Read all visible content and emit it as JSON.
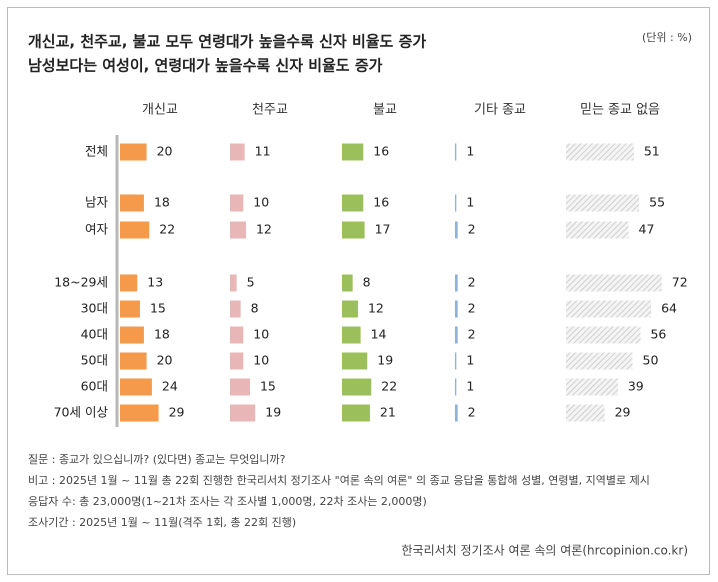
{
  "chart_data": {
    "type": "bar",
    "title": "개신교, 천주교, 불교 모두 연령대가 높을수록 신자 비율도 증가",
    "subtitle": "남성보다는 여성이, 연령대가 높을수록 신자 비율도 증가",
    "unit_note": "(단위 : %)",
    "categories": [
      "전체",
      "남자",
      "여자",
      "18~29세",
      "30대",
      "40대",
      "50대",
      "60대",
      "70세 이상"
    ],
    "series": [
      {
        "name": "개신교",
        "color": "#f59a4a",
        "values": [
          20,
          18,
          22,
          13,
          15,
          18,
          20,
          24,
          29
        ]
      },
      {
        "name": "천주교",
        "color": "#e8b6b6",
        "values": [
          11,
          10,
          12,
          5,
          8,
          10,
          10,
          15,
          19
        ]
      },
      {
        "name": "불교",
        "color": "#9bbf5a",
        "values": [
          16,
          16,
          17,
          8,
          12,
          14,
          19,
          22,
          21
        ]
      },
      {
        "name": "기타 종교",
        "color": "#8fb0d8",
        "values": [
          1,
          1,
          2,
          2,
          2,
          2,
          1,
          1,
          2
        ]
      },
      {
        "name": "믿는 종교 없음",
        "color": "#d0d0d0",
        "values": [
          51,
          55,
          47,
          72,
          64,
          56,
          50,
          39,
          29
        ]
      }
    ],
    "notes": [
      "질문 : 종교가 있으십니까? (있다면) 종교는 무엇입니까?",
      "비고 : 2025년 1월 ~ 11월 총 22회 진행한 한국리서치 정기조사 \"여론 속의 여론\" 의 종교 응답을 통합해 성별, 연령별, 지역별로 제시",
      "응답자 수: 총 23,000명(1~21차 조사는 각 조사별 1,000명, 22차 조사는 2,000명)",
      "조사기간 : 2025년 1월 ~ 11월(격주 1회, 총 22회 진행)"
    ],
    "source": "한국리서치 정기조사 여론 속의 여론(hrcopinion.co.kr)"
  }
}
